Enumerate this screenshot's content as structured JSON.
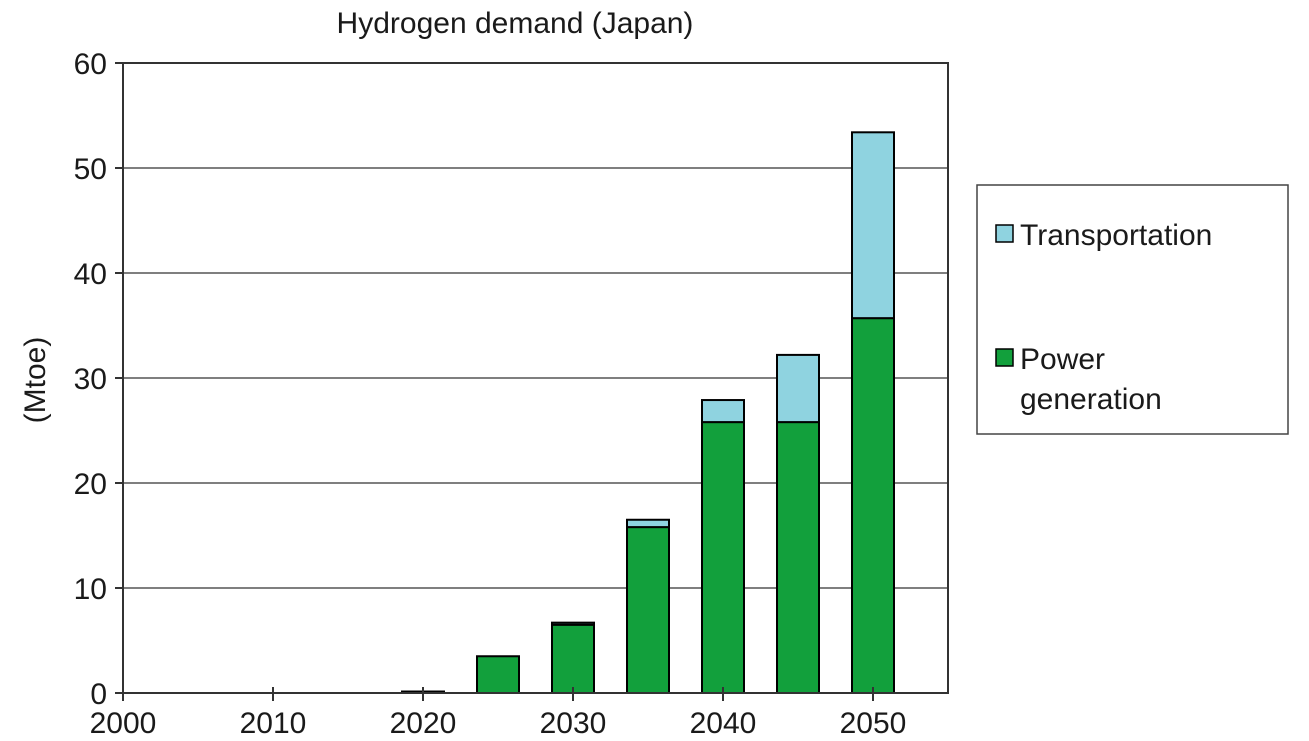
{
  "chart_data": {
    "type": "bar",
    "stacked": true,
    "title": "Hydrogen demand (Japan)",
    "xlabel": "",
    "ylabel": "(Mtoe)",
    "ylim": [
      0,
      60
    ],
    "yticks": [
      0,
      10,
      20,
      30,
      40,
      50,
      60
    ],
    "x_range": [
      2000,
      2055
    ],
    "xticks": [
      2000,
      2010,
      2020,
      2030,
      2040,
      2050
    ],
    "x": [
      2020,
      2025,
      2030,
      2035,
      2040,
      2045,
      2050
    ],
    "grid": "horizontal",
    "legend_position": "right",
    "series": [
      {
        "name": "Power generation",
        "color": "#12a03c",
        "values": [
          0.1,
          3.5,
          6.5,
          15.8,
          25.8,
          25.8,
          35.7
        ]
      },
      {
        "name": "Transportation",
        "color": "#8fd3e0",
        "values": [
          0,
          0,
          0.2,
          0.7,
          2.1,
          6.4,
          17.7
        ]
      }
    ]
  }
}
